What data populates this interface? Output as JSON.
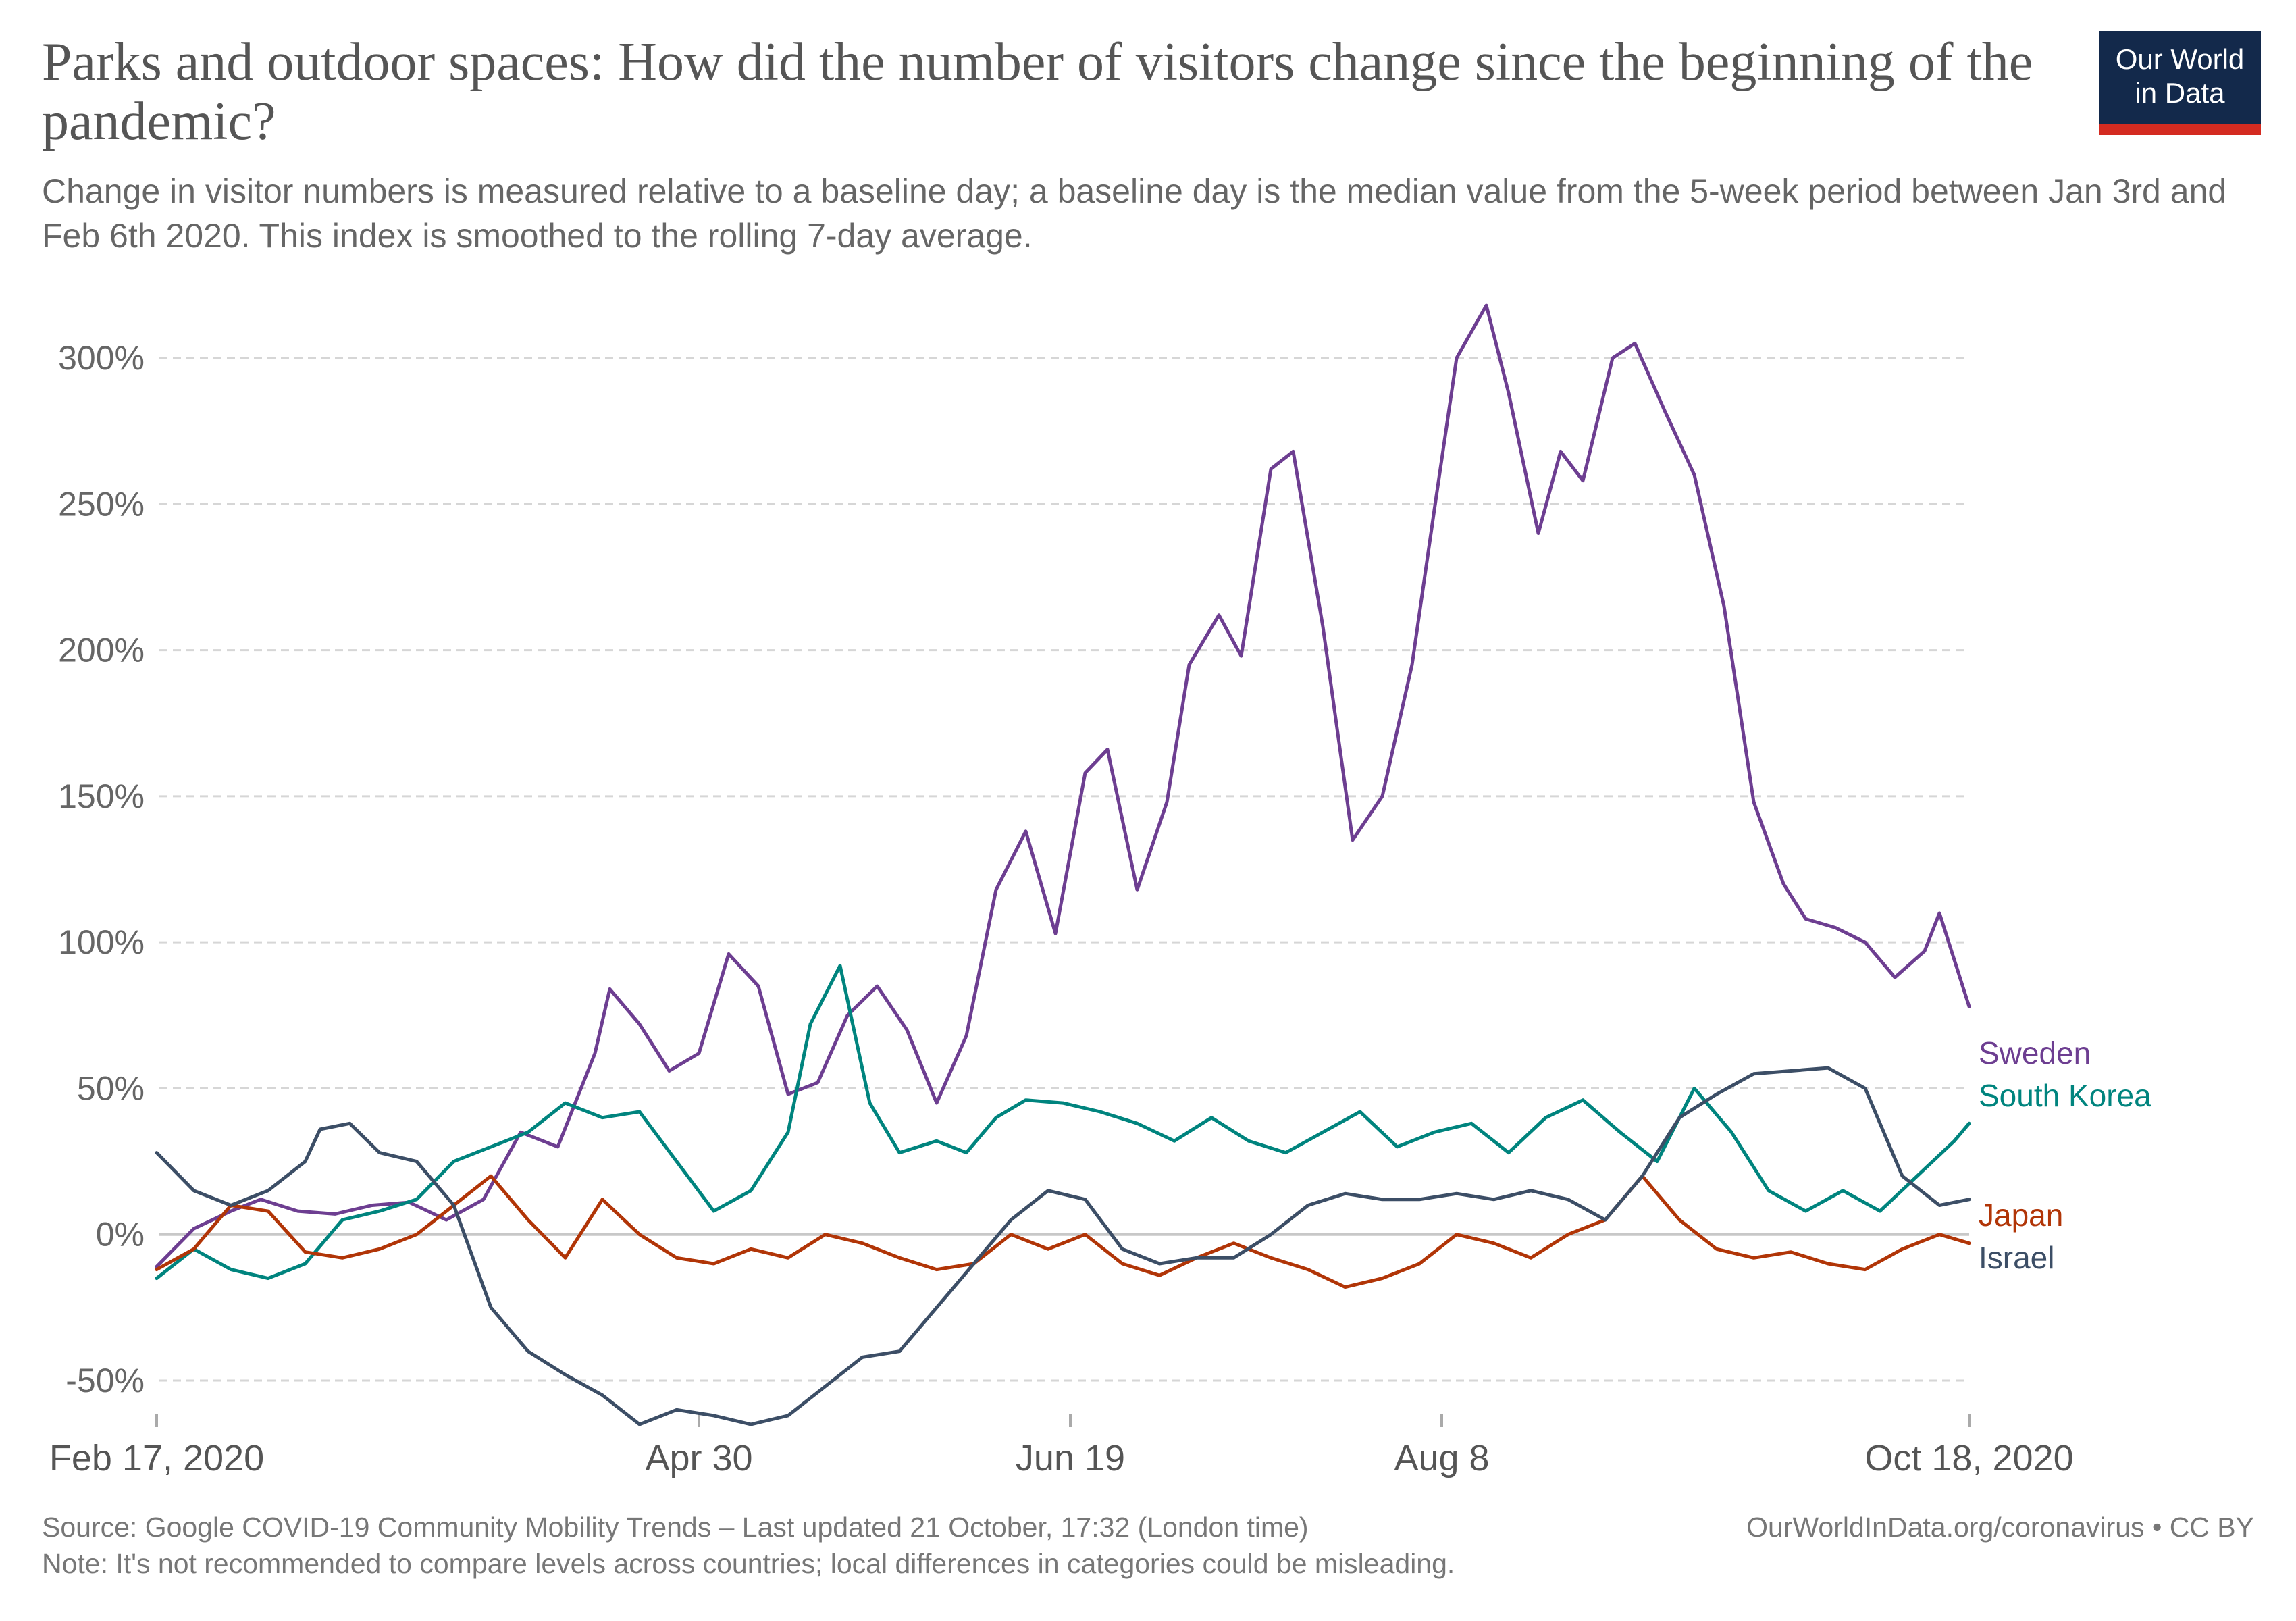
{
  "header": {
    "title": "Parks and outdoor spaces: How did the number of visitors change since the beginning of the pandemic?",
    "subtitle": "Change in visitor numbers is measured relative to a baseline day; a baseline day is the median value from the 5-week period between Jan 3rd and Feb 6th 2020. This index is smoothed to the rolling 7-day average."
  },
  "logo": {
    "line1": "Our World",
    "line2": "in Data"
  },
  "footer": {
    "source": "Source: Google COVID-19 Community Mobility Trends – Last updated 21 October, 17:32 (London time)",
    "source_right": "OurWorldInData.org/coronavirus • CC BY",
    "note": "Note: It's not recommended to compare levels across countries; local differences in categories could be misleading."
  },
  "chart_data": {
    "type": "line",
    "title": "Parks and outdoor spaces: How did the number of visitors change since the beginning of the pandemic?",
    "x_start": "2020-02-17",
    "x_end": "2020-10-18",
    "xlim": [
      "2020-02-17",
      "2020-10-18"
    ],
    "ylim": [
      -65,
      320
    ],
    "x_ticks": [
      {
        "date": "2020-02-17",
        "label": "Feb 17, 2020"
      },
      {
        "date": "2020-04-30",
        "label": "Apr 30"
      },
      {
        "date": "2020-06-19",
        "label": "Jun 19"
      },
      {
        "date": "2020-08-08",
        "label": "Aug 8"
      },
      {
        "date": "2020-10-18",
        "label": "Oct 18, 2020"
      }
    ],
    "y_ticks": [
      {
        "value": -50,
        "label": "-50%"
      },
      {
        "value": 0,
        "label": "0%"
      },
      {
        "value": 50,
        "label": "50%"
      },
      {
        "value": 100,
        "label": "100%"
      },
      {
        "value": 150,
        "label": "150%"
      },
      {
        "value": 200,
        "label": "200%"
      },
      {
        "value": 250,
        "label": "250%"
      },
      {
        "value": 300,
        "label": "300%"
      }
    ],
    "grid": {
      "horizontal": true,
      "style": "dashed"
    },
    "legend": "inline-right",
    "series": [
      {
        "name": "Sweden",
        "color": "#6d3e91",
        "points": [
          [
            "2020-02-17",
            -11
          ],
          [
            "2020-02-22",
            2
          ],
          [
            "2020-02-27",
            8
          ],
          [
            "2020-03-02",
            12
          ],
          [
            "2020-03-07",
            8
          ],
          [
            "2020-03-12",
            7
          ],
          [
            "2020-03-17",
            10
          ],
          [
            "2020-03-22",
            11
          ],
          [
            "2020-03-27",
            5
          ],
          [
            "2020-04-01",
            12
          ],
          [
            "2020-04-06",
            35
          ],
          [
            "2020-04-11",
            30
          ],
          [
            "2020-04-16",
            62
          ],
          [
            "2020-04-18",
            84
          ],
          [
            "2020-04-22",
            72
          ],
          [
            "2020-04-26",
            56
          ],
          [
            "2020-04-30",
            62
          ],
          [
            "2020-05-04",
            96
          ],
          [
            "2020-05-08",
            85
          ],
          [
            "2020-05-12",
            48
          ],
          [
            "2020-05-16",
            52
          ],
          [
            "2020-05-20",
            75
          ],
          [
            "2020-05-24",
            85
          ],
          [
            "2020-05-28",
            70
          ],
          [
            "2020-06-01",
            45
          ],
          [
            "2020-06-05",
            68
          ],
          [
            "2020-06-09",
            118
          ],
          [
            "2020-06-13",
            138
          ],
          [
            "2020-06-17",
            103
          ],
          [
            "2020-06-21",
            158
          ],
          [
            "2020-06-24",
            166
          ],
          [
            "2020-06-28",
            118
          ],
          [
            "2020-07-02",
            148
          ],
          [
            "2020-07-05",
            195
          ],
          [
            "2020-07-09",
            212
          ],
          [
            "2020-07-12",
            198
          ],
          [
            "2020-07-16",
            262
          ],
          [
            "2020-07-19",
            268
          ],
          [
            "2020-07-23",
            208
          ],
          [
            "2020-07-27",
            135
          ],
          [
            "2020-07-31",
            150
          ],
          [
            "2020-08-04",
            195
          ],
          [
            "2020-08-07",
            248
          ],
          [
            "2020-08-10",
            300
          ],
          [
            "2020-08-14",
            318
          ],
          [
            "2020-08-17",
            288
          ],
          [
            "2020-08-21",
            240
          ],
          [
            "2020-08-24",
            268
          ],
          [
            "2020-08-27",
            258
          ],
          [
            "2020-08-31",
            300
          ],
          [
            "2020-09-03",
            305
          ],
          [
            "2020-09-07",
            282
          ],
          [
            "2020-09-11",
            260
          ],
          [
            "2020-09-15",
            215
          ],
          [
            "2020-09-19",
            148
          ],
          [
            "2020-09-23",
            120
          ],
          [
            "2020-09-26",
            108
          ],
          [
            "2020-09-30",
            105
          ],
          [
            "2020-10-04",
            100
          ],
          [
            "2020-10-08",
            88
          ],
          [
            "2020-10-12",
            97
          ],
          [
            "2020-10-14",
            110
          ],
          [
            "2020-10-18",
            78
          ]
        ]
      },
      {
        "name": "South Korea",
        "color": "#00847e",
        "points": [
          [
            "2020-02-17",
            -15
          ],
          [
            "2020-02-22",
            -5
          ],
          [
            "2020-02-27",
            -12
          ],
          [
            "2020-03-03",
            -15
          ],
          [
            "2020-03-08",
            -10
          ],
          [
            "2020-03-13",
            5
          ],
          [
            "2020-03-18",
            8
          ],
          [
            "2020-03-23",
            12
          ],
          [
            "2020-03-28",
            25
          ],
          [
            "2020-04-02",
            30
          ],
          [
            "2020-04-07",
            35
          ],
          [
            "2020-04-12",
            45
          ],
          [
            "2020-04-17",
            40
          ],
          [
            "2020-04-22",
            42
          ],
          [
            "2020-04-27",
            25
          ],
          [
            "2020-05-02",
            8
          ],
          [
            "2020-05-07",
            15
          ],
          [
            "2020-05-12",
            35
          ],
          [
            "2020-05-15",
            72
          ],
          [
            "2020-05-19",
            92
          ],
          [
            "2020-05-23",
            45
          ],
          [
            "2020-05-27",
            28
          ],
          [
            "2020-06-01",
            32
          ],
          [
            "2020-06-05",
            28
          ],
          [
            "2020-06-09",
            40
          ],
          [
            "2020-06-13",
            46
          ],
          [
            "2020-06-18",
            45
          ],
          [
            "2020-06-23",
            42
          ],
          [
            "2020-06-28",
            38
          ],
          [
            "2020-07-03",
            32
          ],
          [
            "2020-07-08",
            40
          ],
          [
            "2020-07-13",
            32
          ],
          [
            "2020-07-18",
            28
          ],
          [
            "2020-07-23",
            35
          ],
          [
            "2020-07-28",
            42
          ],
          [
            "2020-08-02",
            30
          ],
          [
            "2020-08-07",
            35
          ],
          [
            "2020-08-12",
            38
          ],
          [
            "2020-08-17",
            28
          ],
          [
            "2020-08-22",
            40
          ],
          [
            "2020-08-27",
            46
          ],
          [
            "2020-09-01",
            35
          ],
          [
            "2020-09-06",
            25
          ],
          [
            "2020-09-11",
            50
          ],
          [
            "2020-09-16",
            35
          ],
          [
            "2020-09-21",
            15
          ],
          [
            "2020-09-26",
            8
          ],
          [
            "2020-10-01",
            15
          ],
          [
            "2020-10-06",
            8
          ],
          [
            "2020-10-11",
            20
          ],
          [
            "2020-10-16",
            32
          ],
          [
            "2020-10-18",
            38
          ]
        ]
      },
      {
        "name": "Japan",
        "color": "#b13507",
        "points": [
          [
            "2020-02-17",
            -12
          ],
          [
            "2020-02-22",
            -5
          ],
          [
            "2020-02-27",
            10
          ],
          [
            "2020-03-03",
            8
          ],
          [
            "2020-03-08",
            -6
          ],
          [
            "2020-03-13",
            -8
          ],
          [
            "2020-03-18",
            -5
          ],
          [
            "2020-03-23",
            0
          ],
          [
            "2020-03-28",
            10
          ],
          [
            "2020-04-02",
            20
          ],
          [
            "2020-04-07",
            5
          ],
          [
            "2020-04-12",
            -8
          ],
          [
            "2020-04-17",
            12
          ],
          [
            "2020-04-22",
            0
          ],
          [
            "2020-04-27",
            -8
          ],
          [
            "2020-05-02",
            -10
          ],
          [
            "2020-05-07",
            -5
          ],
          [
            "2020-05-12",
            -8
          ],
          [
            "2020-05-17",
            0
          ],
          [
            "2020-05-22",
            -3
          ],
          [
            "2020-05-27",
            -8
          ],
          [
            "2020-06-01",
            -12
          ],
          [
            "2020-06-06",
            -10
          ],
          [
            "2020-06-11",
            0
          ],
          [
            "2020-06-16",
            -5
          ],
          [
            "2020-06-21",
            0
          ],
          [
            "2020-06-26",
            -10
          ],
          [
            "2020-07-01",
            -14
          ],
          [
            "2020-07-06",
            -8
          ],
          [
            "2020-07-11",
            -3
          ],
          [
            "2020-07-16",
            -8
          ],
          [
            "2020-07-21",
            -12
          ],
          [
            "2020-07-26",
            -18
          ],
          [
            "2020-07-31",
            -15
          ],
          [
            "2020-08-05",
            -10
          ],
          [
            "2020-08-10",
            0
          ],
          [
            "2020-08-15",
            -3
          ],
          [
            "2020-08-20",
            -8
          ],
          [
            "2020-08-25",
            0
          ],
          [
            "2020-08-30",
            5
          ],
          [
            "2020-09-04",
            20
          ],
          [
            "2020-09-09",
            5
          ],
          [
            "2020-09-14",
            -5
          ],
          [
            "2020-09-19",
            -8
          ],
          [
            "2020-09-24",
            -6
          ],
          [
            "2020-09-29",
            -10
          ],
          [
            "2020-10-04",
            -12
          ],
          [
            "2020-10-09",
            -5
          ],
          [
            "2020-10-14",
            0
          ],
          [
            "2020-10-18",
            -3
          ]
        ]
      },
      {
        "name": "Israel",
        "color": "#3c4e66",
        "points": [
          [
            "2020-02-17",
            28
          ],
          [
            "2020-02-22",
            15
          ],
          [
            "2020-02-27",
            10
          ],
          [
            "2020-03-03",
            15
          ],
          [
            "2020-03-08",
            25
          ],
          [
            "2020-03-10",
            36
          ],
          [
            "2020-03-14",
            38
          ],
          [
            "2020-03-18",
            28
          ],
          [
            "2020-03-23",
            25
          ],
          [
            "2020-03-28",
            10
          ],
          [
            "2020-04-02",
            -25
          ],
          [
            "2020-04-07",
            -40
          ],
          [
            "2020-04-12",
            -48
          ],
          [
            "2020-04-17",
            -55
          ],
          [
            "2020-04-22",
            -65
          ],
          [
            "2020-04-27",
            -60
          ],
          [
            "2020-05-02",
            -62
          ],
          [
            "2020-05-07",
            -65
          ],
          [
            "2020-05-12",
            -62
          ],
          [
            "2020-05-17",
            -52
          ],
          [
            "2020-05-22",
            -42
          ],
          [
            "2020-05-27",
            -40
          ],
          [
            "2020-06-01",
            -25
          ],
          [
            "2020-06-06",
            -10
          ],
          [
            "2020-06-11",
            5
          ],
          [
            "2020-06-16",
            15
          ],
          [
            "2020-06-21",
            12
          ],
          [
            "2020-06-26",
            -5
          ],
          [
            "2020-07-01",
            -10
          ],
          [
            "2020-07-06",
            -8
          ],
          [
            "2020-07-11",
            -8
          ],
          [
            "2020-07-16",
            0
          ],
          [
            "2020-07-21",
            10
          ],
          [
            "2020-07-26",
            14
          ],
          [
            "2020-07-31",
            12
          ],
          [
            "2020-08-05",
            12
          ],
          [
            "2020-08-10",
            14
          ],
          [
            "2020-08-15",
            12
          ],
          [
            "2020-08-20",
            15
          ],
          [
            "2020-08-25",
            12
          ],
          [
            "2020-08-30",
            5
          ],
          [
            "2020-09-04",
            20
          ],
          [
            "2020-09-09",
            40
          ],
          [
            "2020-09-14",
            48
          ],
          [
            "2020-09-19",
            55
          ],
          [
            "2020-09-24",
            56
          ],
          [
            "2020-09-29",
            57
          ],
          [
            "2020-10-04",
            50
          ],
          [
            "2020-10-09",
            20
          ],
          [
            "2020-10-14",
            10
          ],
          [
            "2020-10-18",
            12
          ]
        ]
      }
    ]
  }
}
